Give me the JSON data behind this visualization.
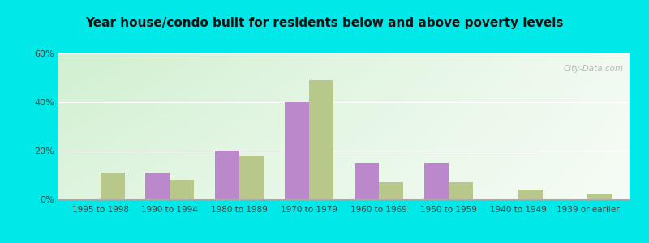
{
  "title": "Year house/condo built for residents below and above poverty levels",
  "categories": [
    "1995 to 1998",
    "1990 to 1994",
    "1980 to 1989",
    "1970 to 1979",
    "1960 to 1969",
    "1950 to 1959",
    "1940 to 1949",
    "1939 or earlier"
  ],
  "below_poverty": [
    0,
    11,
    20,
    40,
    15,
    15,
    0,
    0
  ],
  "above_poverty": [
    11,
    8,
    18,
    49,
    7,
    7,
    4,
    2
  ],
  "below_color": "#bb88cc",
  "above_color": "#b8c88a",
  "background_color": "#00e8e8",
  "ylim": [
    0,
    60
  ],
  "yticks": [
    0,
    20,
    40,
    60
  ],
  "ytick_labels": [
    "0%",
    "20%",
    "40%",
    "60%"
  ],
  "bar_width": 0.35,
  "gradient_left_top": "#c8e8c0",
  "gradient_right_bottom": "#ffffff"
}
